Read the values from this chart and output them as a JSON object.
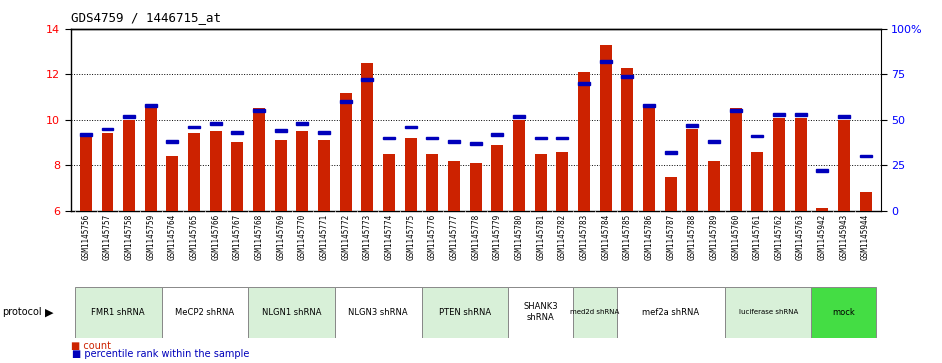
{
  "title": "GDS4759 / 1446715_at",
  "samples": [
    "GSM1145756",
    "GSM1145757",
    "GSM1145758",
    "GSM1145759",
    "GSM1145764",
    "GSM1145765",
    "GSM1145766",
    "GSM1145767",
    "GSM1145768",
    "GSM1145769",
    "GSM1145770",
    "GSM1145771",
    "GSM1145772",
    "GSM1145773",
    "GSM1145774",
    "GSM1145775",
    "GSM1145776",
    "GSM1145777",
    "GSM1145778",
    "GSM1145779",
    "GSM1145780",
    "GSM1145781",
    "GSM1145782",
    "GSM1145783",
    "GSM1145784",
    "GSM1145785",
    "GSM1145786",
    "GSM1145787",
    "GSM1145788",
    "GSM1145789",
    "GSM1145760",
    "GSM1145761",
    "GSM1145762",
    "GSM1145763",
    "GSM1145942",
    "GSM1145943",
    "GSM1145944"
  ],
  "counts": [
    9.3,
    9.4,
    10.0,
    10.6,
    8.4,
    9.4,
    9.5,
    9.0,
    10.5,
    9.1,
    9.5,
    9.1,
    11.2,
    12.5,
    8.5,
    9.2,
    8.5,
    8.2,
    8.1,
    8.9,
    10.0,
    8.5,
    8.6,
    12.1,
    13.3,
    12.3,
    10.6,
    7.5,
    9.6,
    8.2,
    10.5,
    8.6,
    10.1,
    10.1,
    6.1,
    10.0,
    6.8
  ],
  "percentile_ranks": [
    0.42,
    0.45,
    0.52,
    0.58,
    0.38,
    0.46,
    0.48,
    0.43,
    0.55,
    0.44,
    0.48,
    0.43,
    0.6,
    0.72,
    0.4,
    0.46,
    0.4,
    0.38,
    0.37,
    0.42,
    0.52,
    0.4,
    0.4,
    0.7,
    0.82,
    0.74,
    0.58,
    0.32,
    0.47,
    0.38,
    0.55,
    0.41,
    0.53,
    0.53,
    0.22,
    0.52,
    0.3
  ],
  "protocols": [
    {
      "label": "FMR1 shRNA",
      "start": 0,
      "end": 4,
      "color": "#d8f0d8"
    },
    {
      "label": "MeCP2 shRNA",
      "start": 4,
      "end": 8,
      "color": "#ffffff"
    },
    {
      "label": "NLGN1 shRNA",
      "start": 8,
      "end": 12,
      "color": "#d8f0d8"
    },
    {
      "label": "NLGN3 shRNA",
      "start": 12,
      "end": 16,
      "color": "#ffffff"
    },
    {
      "label": "PTEN shRNA",
      "start": 16,
      "end": 20,
      "color": "#d8f0d8"
    },
    {
      "label": "SHANK3\nshRNA",
      "start": 20,
      "end": 23,
      "color": "#ffffff"
    },
    {
      "label": "med2d shRNA",
      "start": 23,
      "end": 25,
      "color": "#d8f0d8"
    },
    {
      "label": "mef2a shRNA",
      "start": 25,
      "end": 30,
      "color": "#ffffff"
    },
    {
      "label": "luciferase shRNA",
      "start": 30,
      "end": 34,
      "color": "#d8f0d8"
    },
    {
      "label": "mock",
      "start": 34,
      "end": 37,
      "color": "#44dd44"
    }
  ],
  "bar_color": "#cc2200",
  "percentile_color": "#0000bb",
  "ymin": 6,
  "ymax": 14,
  "yticks_left": [
    6,
    8,
    10,
    12,
    14
  ],
  "right_yticks": [
    0,
    25,
    50,
    75,
    100
  ],
  "right_yticklabels": [
    "0",
    "25",
    "50",
    "75",
    "100%"
  ]
}
